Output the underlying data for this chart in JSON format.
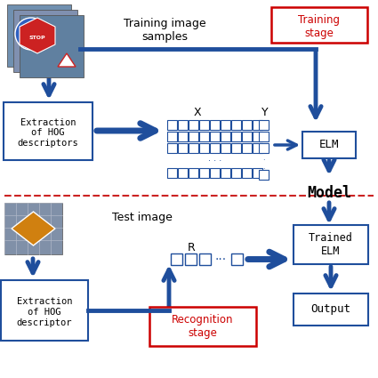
{
  "dark_blue": "#1f4e9c",
  "red_label": "#cc0000",
  "dashed_red": "#cc2222",
  "title": "Training image\nsamples",
  "training_stage_label": "Training\nstage",
  "test_image_label": "Test image",
  "recognition_stage_label": "Recognition\nstage",
  "extraction_hog_label": "Extraction\nof HOG\ndescriptors",
  "extraction_hog2_label": "Extraction\nof HOG\ndescriptor",
  "elm_label": "ELM",
  "model_label": "Model",
  "trained_elm_label": "Trained\nELM",
  "output_label": "Output",
  "x_label": "X",
  "y_label": "Y",
  "r_label": "R"
}
